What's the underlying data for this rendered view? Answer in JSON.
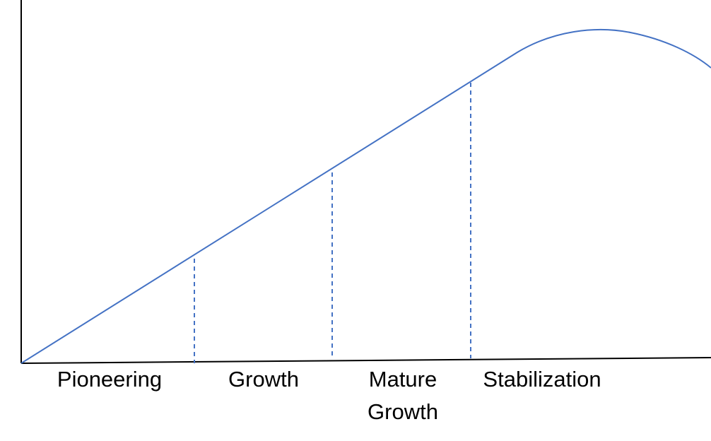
{
  "diagram": {
    "stages": [
      {
        "name": "Pioneering",
        "lines": [
          "Pioneering"
        ]
      },
      {
        "name": "Growth",
        "lines": [
          "Growth"
        ]
      },
      {
        "name": "Mature Growth",
        "lines": [
          "Mature",
          "Growth"
        ]
      },
      {
        "name": "Stabilization",
        "lines": [
          "Stabilization"
        ]
      }
    ],
    "colors": {
      "curve": "#4472C4",
      "axes": "#000000",
      "dividers": "#4472C4",
      "text": "#000000"
    }
  }
}
